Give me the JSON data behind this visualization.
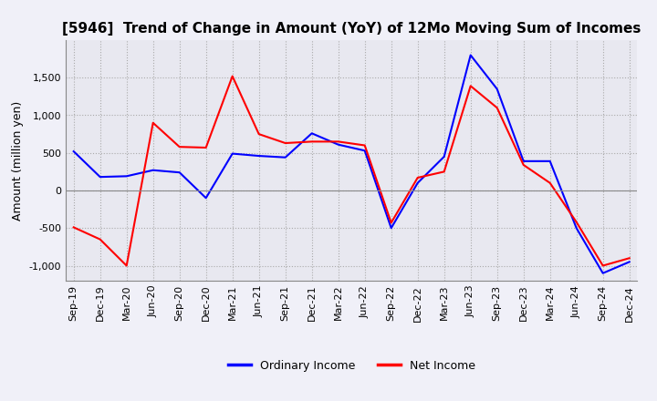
{
  "title": "[5946]  Trend of Change in Amount (YoY) of 12Mo Moving Sum of Incomes",
  "ylabel": "Amount (million yen)",
  "x_labels": [
    "Sep-19",
    "Dec-19",
    "Mar-20",
    "Jun-20",
    "Sep-20",
    "Dec-20",
    "Mar-21",
    "Jun-21",
    "Sep-21",
    "Dec-21",
    "Mar-22",
    "Jun-22",
    "Sep-22",
    "Dec-22",
    "Mar-23",
    "Jun-23",
    "Sep-23",
    "Dec-23",
    "Mar-24",
    "Jun-24",
    "Sep-24",
    "Dec-24"
  ],
  "ordinary_income": [
    520,
    180,
    190,
    270,
    240,
    -100,
    490,
    460,
    440,
    760,
    610,
    530,
    -500,
    100,
    450,
    1800,
    1350,
    390,
    390,
    -500,
    -1100,
    -950
  ],
  "net_income": [
    -490,
    -650,
    -1000,
    900,
    580,
    570,
    1520,
    750,
    630,
    650,
    650,
    600,
    -430,
    170,
    250,
    1390,
    1100,
    340,
    100,
    -420,
    -1000,
    -900
  ],
  "ordinary_color": "#0000ff",
  "net_color": "#ff0000",
  "ylim": [
    -1200,
    2000
  ],
  "yticks": [
    -1000,
    -500,
    0,
    500,
    1000,
    1500
  ],
  "background_color": "#f0f0f8",
  "plot_background": "#e8e8f0",
  "grid_color": "#aaaaaa",
  "title_fontsize": 11,
  "axis_fontsize": 9,
  "tick_fontsize": 8
}
